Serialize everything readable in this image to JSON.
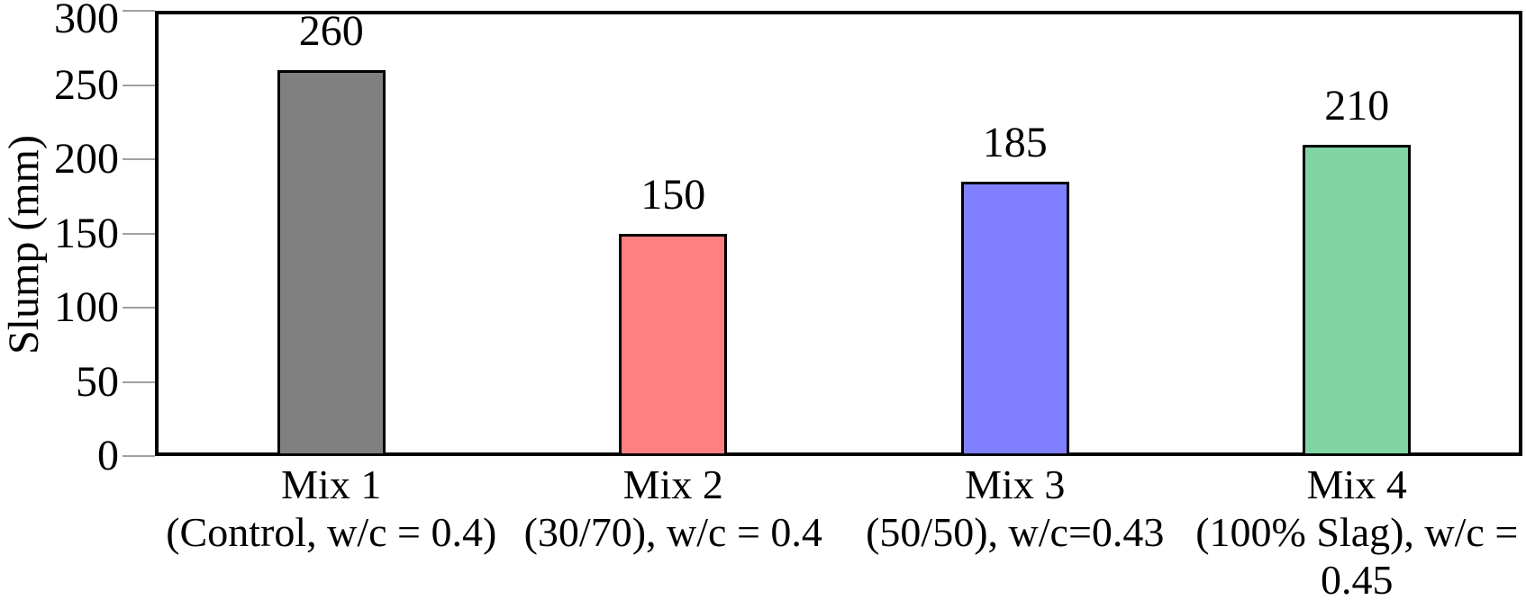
{
  "chart_data": {
    "type": "bar",
    "title": "",
    "xlabel": "",
    "ylabel": "Slump (mm)",
    "ylim": [
      0,
      300
    ],
    "yticks": [
      0,
      50,
      100,
      150,
      200,
      250,
      300
    ],
    "grid": false,
    "legend": "none",
    "categories": [
      [
        "Mix 1",
        "(Control, w/c = 0.4)"
      ],
      [
        "Mix 2",
        "(30/70), w/c = 0.4"
      ],
      [
        "Mix 3",
        "(50/50), w/c=0.43"
      ],
      [
        "Mix 4",
        "(100% Slag), w/c =",
        "0.45"
      ]
    ],
    "values": [
      260,
      150,
      185,
      210
    ],
    "value_labels": [
      "260",
      "150",
      "185",
      "210"
    ],
    "bar_colors": [
      "#808080",
      "#FF8080",
      "#8080FF",
      "#7FD4A2"
    ],
    "bar_border_color": "#000000",
    "axis_frame_color": "#000000",
    "tick_mark_color": "#a0a0a0",
    "background_color": "#ffffff"
  }
}
